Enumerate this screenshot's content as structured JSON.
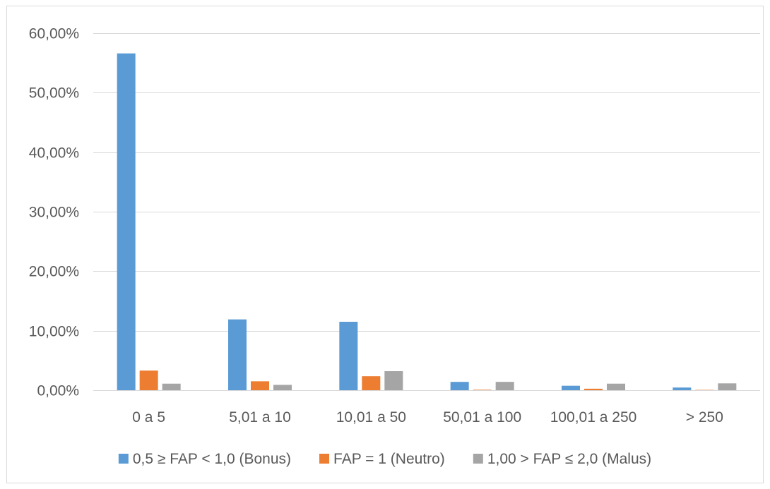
{
  "chart_data": {
    "type": "bar",
    "title": "",
    "xlabel": "",
    "ylabel": "",
    "categories": [
      "0 a 5",
      "5,01 a 10",
      "10,01 a 50",
      "50,01 a 100",
      "100,01 a 250",
      "> 250"
    ],
    "series": [
      {
        "name": "0,5 ≥ FAP < 1,0 (Bonus)",
        "color": "#5b9bd5",
        "values": [
          56.6,
          11.9,
          11.5,
          1.4,
          0.75,
          0.45
        ]
      },
      {
        "name": "FAP = 1 (Neutro)",
        "color": "#ed7d31",
        "values": [
          3.3,
          1.5,
          2.35,
          0.08,
          0.25,
          0.05
        ]
      },
      {
        "name": "1,00 > FAP ≤ 2,0 (Malus)",
        "color": "#a5a5a5",
        "values": [
          1.1,
          0.9,
          3.2,
          1.4,
          1.1,
          1.15
        ]
      }
    ],
    "ylim": [
      0,
      60
    ],
    "yticks": [
      0,
      10,
      20,
      30,
      40,
      50,
      60
    ],
    "ytick_labels": [
      "0,00%",
      "10,00%",
      "20,00%",
      "30,00%",
      "40,00%",
      "50,00%",
      "60,00%"
    ],
    "grid": true,
    "legend_position": "bottom"
  }
}
